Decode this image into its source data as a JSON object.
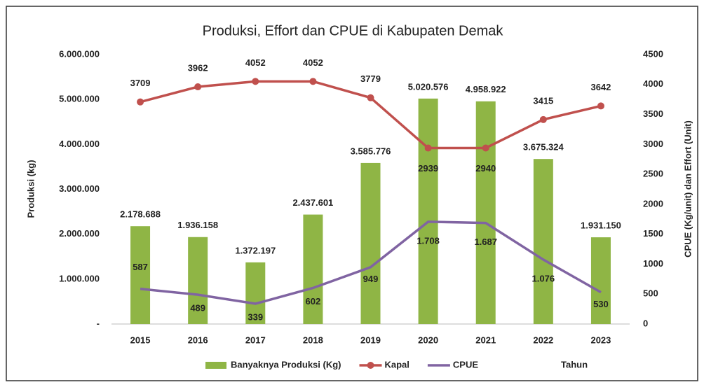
{
  "chart_data": {
    "type": "combo",
    "title": "Produksi, Effort dan CPUE di Kabupaten Demak",
    "ylabel": "Produksi (kg)",
    "y2label": "CPUE (Kg/unit) dan Effort (Unit)",
    "xlabel": "Tahun",
    "categories": [
      "2015",
      "2016",
      "2017",
      "2018",
      "2019",
      "2020",
      "2021",
      "2022",
      "2023"
    ],
    "series": [
      {
        "name": "Banyaknya Produksi (Kg)",
        "type": "bar",
        "color": "#8fb545",
        "values": [
          2178688,
          1936158,
          1372197,
          2437601,
          3585776,
          5020576,
          4958922,
          3675324,
          1931150
        ],
        "value_labels": [
          "2.178.688",
          "1.936.158",
          "1.372.197",
          "2.437.601",
          "3.585.776",
          "5.020.576",
          "4.958.922",
          "3.675.324",
          "1.931.150"
        ]
      },
      {
        "name": "Kapal",
        "type": "line",
        "axis": "y2",
        "color": "#c0504d",
        "marker": true,
        "values": [
          3709,
          3962,
          4052,
          4052,
          3779,
          2939,
          2940,
          3415,
          3642
        ]
      },
      {
        "name": "CPUE",
        "type": "line",
        "axis": "y2",
        "color": "#8064a2",
        "marker": false,
        "values": [
          587,
          489,
          339,
          602,
          949,
          1708,
          1687,
          1076,
          530
        ],
        "value_labels": [
          "587",
          "489",
          "339",
          "602",
          "949",
          "1.708",
          "1.687",
          "1.076",
          "530"
        ]
      }
    ],
    "ylim": [
      0,
      6000000
    ],
    "yticks": [
      {
        "value": 0,
        "label": "-"
      },
      {
        "value": 1000000,
        "label": "1.000.000"
      },
      {
        "value": 2000000,
        "label": "2.000.000"
      },
      {
        "value": 3000000,
        "label": "3.000.000"
      },
      {
        "value": 4000000,
        "label": "4.000.000"
      },
      {
        "value": 5000000,
        "label": "5.000.000"
      },
      {
        "value": 6000000,
        "label": "6.000.000"
      }
    ],
    "y2lim": [
      0,
      4500
    ],
    "y2ticks": [
      0,
      500,
      1000,
      1500,
      2000,
      2500,
      3000,
      3500,
      4000,
      4500
    ],
    "grid": false,
    "legend": "bottom"
  }
}
